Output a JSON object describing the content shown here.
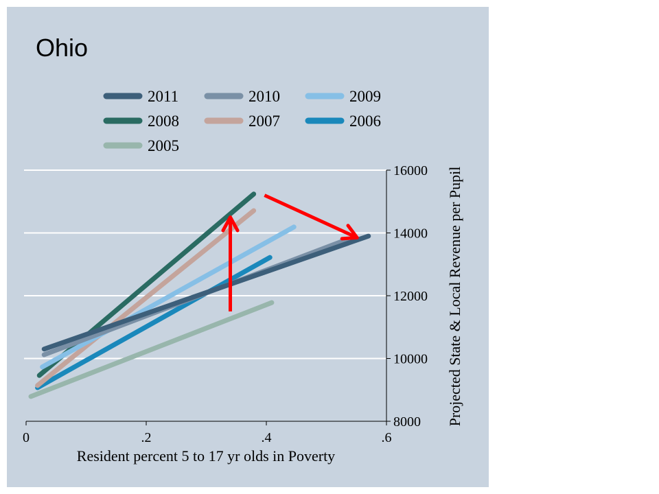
{
  "chart_data": {
    "type": "line",
    "title": "Ohio",
    "xlabel": "Resident percent 5 to 17 yr olds in Poverty",
    "ylabel": "Projected State & Local Revenue per Pupil",
    "xlim": [
      0,
      0.6
    ],
    "ylim": [
      8000,
      16000
    ],
    "x_ticks": [
      {
        "v": 0,
        "label": "0"
      },
      {
        "v": 0.2,
        "label": ".2"
      },
      {
        "v": 0.4,
        "label": ".4"
      },
      {
        "v": 0.6,
        "label": ".6"
      }
    ],
    "y_ticks": [
      {
        "v": 8000,
        "label": "8000"
      },
      {
        "v": 10000,
        "label": "10000"
      },
      {
        "v": 12000,
        "label": "12000"
      },
      {
        "v": 14000,
        "label": "14000"
      },
      {
        "v": 16000,
        "label": "16000"
      }
    ],
    "y_axis_side": "right",
    "grid": "horizontal",
    "background": "#c8d3df",
    "legend_placement": "top",
    "series": [
      {
        "name": "2011",
        "color": "#3d5f7a",
        "x": [
          0.03,
          0.57
        ],
        "y": [
          10300,
          13900
        ]
      },
      {
        "name": "2010",
        "color": "#7a90a6",
        "x": [
          0.03,
          0.534
        ],
        "y": [
          10120,
          13790
        ]
      },
      {
        "name": "2009",
        "color": "#86bfe6",
        "x": [
          0.027,
          0.446
        ],
        "y": [
          9730,
          14190
        ]
      },
      {
        "name": "2008",
        "color": "#2a6b62",
        "x": [
          0.022,
          0.379
        ],
        "y": [
          9460,
          15240
        ]
      },
      {
        "name": "2007",
        "color": "#c4a49c",
        "x": [
          0.019,
          0.379
        ],
        "y": [
          9140,
          14710
        ]
      },
      {
        "name": "2006",
        "color": "#1a88bb",
        "x": [
          0.019,
          0.406
        ],
        "y": [
          9070,
          13220
        ]
      },
      {
        "name": "2005",
        "color": "#98b6ac",
        "x": [
          0.008,
          0.409
        ],
        "y": [
          8790,
          11780
        ]
      }
    ],
    "annotations": [
      {
        "type": "arrow",
        "color": "#ff0000",
        "from": [
          0.34,
          11500
        ],
        "to": [
          0.34,
          14500
        ]
      },
      {
        "type": "arrow",
        "color": "#ff0000",
        "from": [
          0.397,
          15200
        ],
        "to": [
          0.551,
          13850
        ]
      }
    ]
  }
}
